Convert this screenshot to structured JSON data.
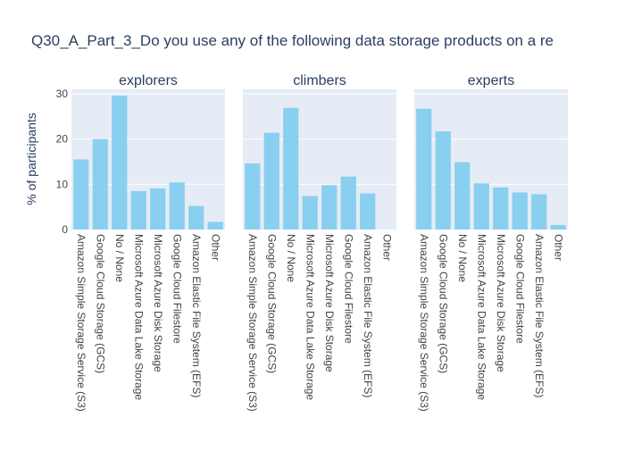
{
  "chart_title": "Q30_A_Part_3_Do you use any of the following data storage products on a re",
  "ylabel": "% of participants",
  "colors": {
    "bar": "#89cff0",
    "plot_bg": "#e5ecf6",
    "grid": "#ffffff",
    "text": "#2a3f5f",
    "tick_text": "#444444"
  },
  "chart_data": [
    {
      "type": "bar",
      "title": "explorers",
      "categories": [
        "Amazon Simple Storage Service (S3)",
        "Google Cloud Storage (GCS)",
        "No / None",
        "Microsoft Azure Data Lake Storage",
        "Microsoft Azure Disk Storage",
        "Google Cloud Filestore",
        "Amazon Elastic File System (EFS)",
        "Other"
      ],
      "values": [
        15.5,
        20.0,
        29.6,
        8.5,
        9.1,
        10.4,
        5.2,
        1.7
      ],
      "ylim": [
        0,
        31
      ],
      "yticks": [
        0,
        10,
        20,
        30
      ],
      "grid": true
    },
    {
      "type": "bar",
      "title": "climbers",
      "categories": [
        "Amazon Simple Storage Service (S3)",
        "Google Cloud Storage (GCS)",
        "No / None",
        "Microsoft Azure Data Lake Storage",
        "Microsoft Azure Disk Storage",
        "Google Cloud Filestore",
        "Amazon Elastic File System (EFS)",
        "Other"
      ],
      "values": [
        14.6,
        21.4,
        26.9,
        7.4,
        9.8,
        11.7,
        8.0,
        0
      ],
      "ylim": [
        0,
        31
      ],
      "yticks": [
        0,
        10,
        20,
        30
      ],
      "grid": true
    },
    {
      "type": "bar",
      "title": "experts",
      "categories": [
        "Amazon Simple Storage Service (S3)",
        "Google Cloud Storage (GCS)",
        "No / None",
        "Microsoft Azure Data Lake Storage",
        "Microsoft Azure Disk Storage",
        "Google Cloud Filestore",
        "Amazon Elastic File System (EFS)",
        "Other"
      ],
      "values": [
        26.7,
        21.7,
        14.9,
        10.2,
        9.3,
        8.2,
        7.8,
        1.0
      ],
      "ylim": [
        0,
        31
      ],
      "yticks": [
        0,
        10,
        20,
        30
      ],
      "grid": true
    }
  ]
}
